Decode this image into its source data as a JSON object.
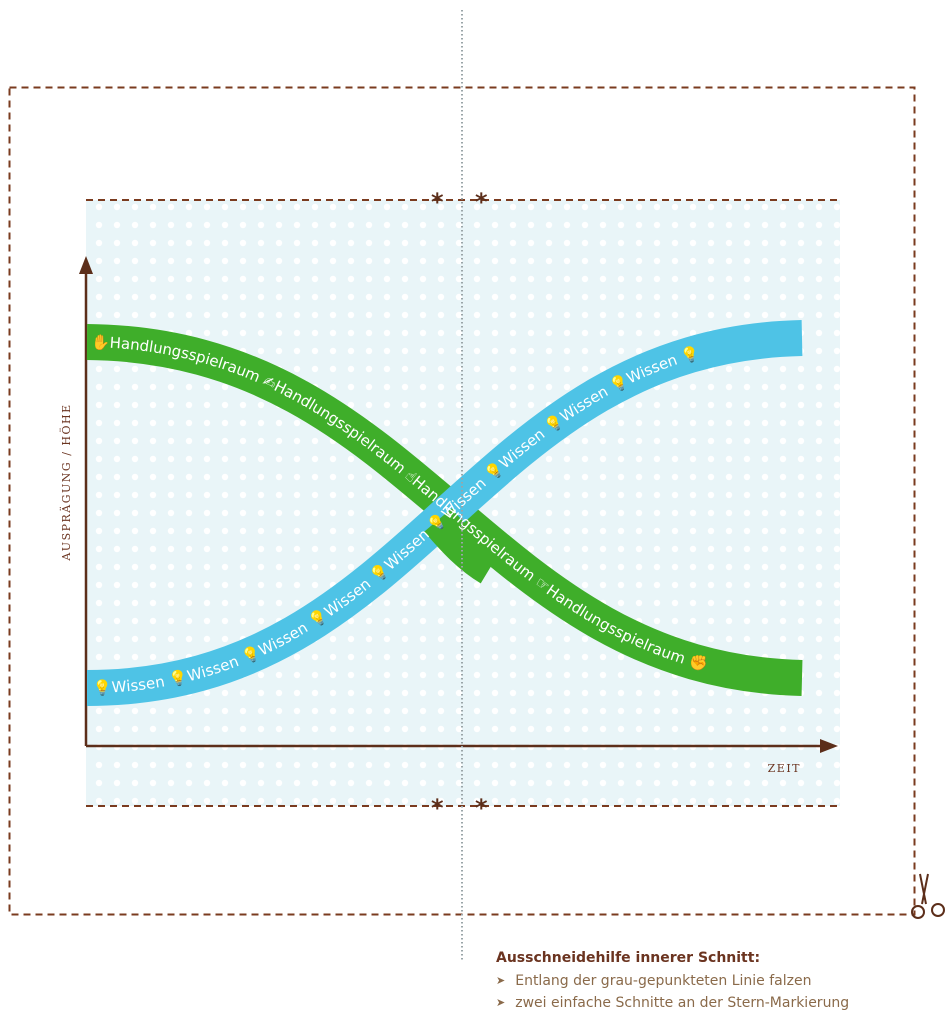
{
  "colors": {
    "cut_line": "#7a3b1f",
    "fold_line": "#9aa5a8",
    "panel_bg": "#e9f5f8",
    "panel_dots": "#ffffff",
    "axis": "#5c2e1a",
    "band_green": "#3fae2a",
    "band_blue": "#4ec3e6",
    "label": "#6b3420"
  },
  "diagram": {
    "y_axis_label": "AUSPRÄGUNG / HÖHE",
    "x_axis_label": "ZEIT",
    "star_mark": "*",
    "scissors_icon": "scissors-icon"
  },
  "bands": {
    "green_text": "✋Handlungsspielraum ✍Handlungsspielraum ☝Handlungsspielraum ☞Handlungsspielraum ✊",
    "blue_text": "💡Wissen 💡Wissen 💡Wissen 💡Wissen 💡Wissen 💡Wissen 💡Wissen 💡Wissen 💡Wissen 💡",
    "green_icon": "hand-icon",
    "blue_icon": "lightbulb-icon"
  },
  "notes": {
    "title": "Ausschneidehilfe innerer Schnitt:",
    "items": [
      "Entlang der grau-gepunkteten Linie falzen",
      "zwei einfache Schnitte an der Stern-Markierung"
    ]
  }
}
